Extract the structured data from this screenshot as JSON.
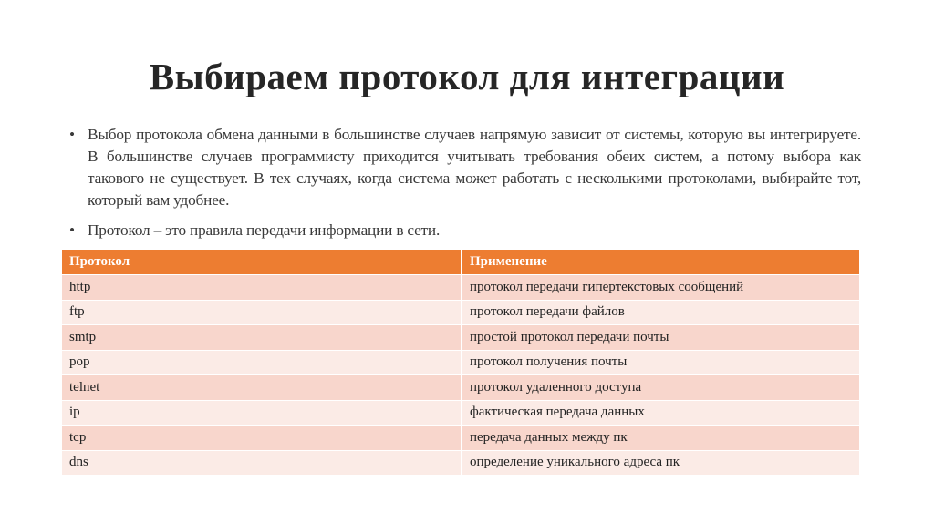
{
  "slide": {
    "title": "Выбираем протокол для интеграции",
    "bullets": [
      "Выбор протокола обмена данными в большинстве случаев напрямую зависит от системы, которую вы интегрируете. В большинстве случаев программисту приходится учитывать требования обеих систем, а потому выбора как такового не существует. В тех случаях, когда система может работать с несколькими протоколами, выбирайте тот, который вам удобнее.",
      "Протокол – это правила передачи информации в сети."
    ],
    "bullet_symbol": "•"
  },
  "table": {
    "headers": [
      "Протокол",
      "Применение"
    ],
    "rows": [
      [
        "http",
        "протокол передачи гипертекстовых сообщений"
      ],
      [
        "ftp",
        "протокол передачи файлов"
      ],
      [
        "smtp",
        "простой протокол передачи почты"
      ],
      [
        "pop",
        "протокол получения почты"
      ],
      [
        "telnet",
        "протокол удаленного доступа"
      ],
      [
        "ip",
        "фактическая передача данных"
      ],
      [
        "tcp",
        "передача данных между пк"
      ],
      [
        "dns",
        "определение уникального адреса пк"
      ]
    ]
  },
  "colors": {
    "header": "#ED7D31",
    "row_dark": "#F8D6CC",
    "row_light": "#FBEBE6"
  }
}
